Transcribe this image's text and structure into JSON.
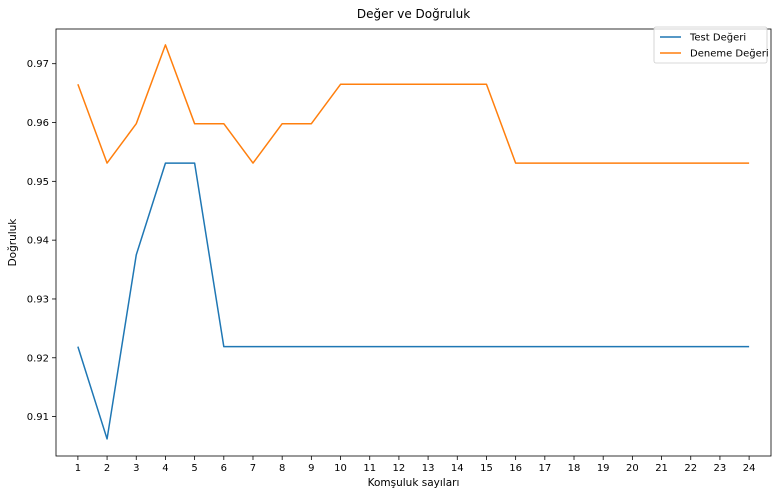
{
  "chart_data": {
    "type": "line",
    "title": "Değer ve Doğruluk",
    "xlabel": "Komşuluk sayıları",
    "ylabel": "Doğruluk",
    "x": [
      1,
      2,
      3,
      4,
      5,
      6,
      7,
      8,
      9,
      10,
      11,
      12,
      13,
      14,
      15,
      16,
      17,
      18,
      19,
      20,
      21,
      22,
      23,
      24
    ],
    "xlim": [
      0.25,
      24.75
    ],
    "ylim": [
      0.9033,
      0.9759
    ],
    "yticks": [
      0.91,
      0.92,
      0.93,
      0.94,
      0.95,
      0.96,
      0.97
    ],
    "ytick_labels": [
      "0.91",
      "0.92",
      "0.93",
      "0.94",
      "0.95",
      "0.96",
      "0.97"
    ],
    "grid": false,
    "legend_position": "top-right",
    "series": [
      {
        "name": "Test Değeri",
        "color": "#1f77b4",
        "values": [
          0.9219,
          0.9062,
          0.9375,
          0.9531,
          0.9531,
          0.9219,
          0.9219,
          0.9219,
          0.9219,
          0.9219,
          0.9219,
          0.9219,
          0.9219,
          0.9219,
          0.9219,
          0.9219,
          0.9219,
          0.9219,
          0.9219,
          0.9219,
          0.9219,
          0.9219,
          0.9219,
          0.9219
        ]
      },
      {
        "name": "Deneme Değeri",
        "color": "#ff7f0e",
        "values": [
          0.9665,
          0.9531,
          0.9598,
          0.9732,
          0.9598,
          0.9598,
          0.9531,
          0.9598,
          0.9598,
          0.9665,
          0.9665,
          0.9665,
          0.9665,
          0.9665,
          0.9665,
          0.9531,
          0.9531,
          0.9531,
          0.9531,
          0.9531,
          0.9531,
          0.9531,
          0.9531,
          0.9531
        ]
      }
    ]
  }
}
